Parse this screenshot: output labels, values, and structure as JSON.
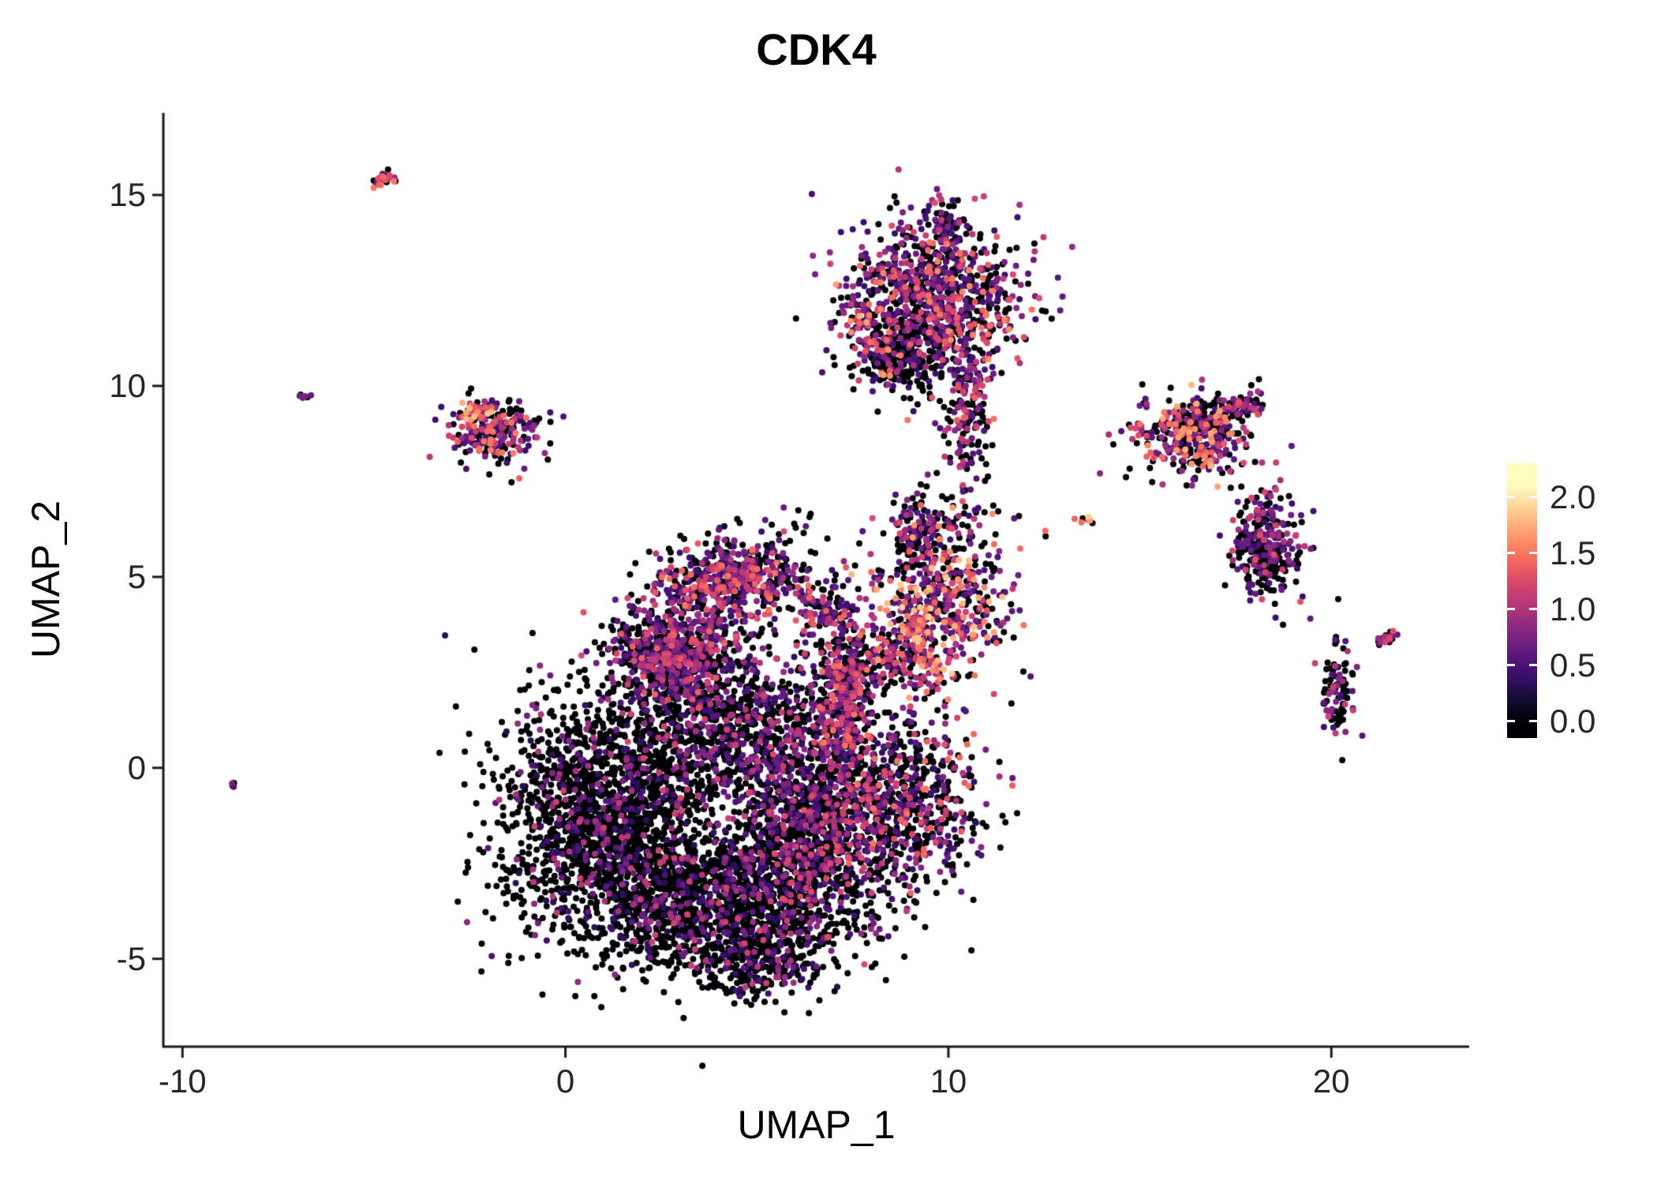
{
  "chart_data": {
    "type": "scatter",
    "title": "CDK4",
    "xlabel": "UMAP_1",
    "ylabel": "UMAP_2",
    "xlim": [
      -10.5,
      23.6
    ],
    "ylim": [
      -7.3,
      17.15
    ],
    "x_ticks": [
      -10,
      0,
      10,
      20
    ],
    "x_tick_labels": [
      "-10",
      "0",
      "10",
      "20"
    ],
    "y_ticks": [
      -5,
      0,
      5,
      10,
      15
    ],
    "y_tick_labels": [
      "-5",
      "0",
      "5",
      "10",
      "15"
    ],
    "grid": false,
    "point_radius_px": 4,
    "seed": 1337,
    "legend": {
      "type": "colorbar",
      "position": "right",
      "tick_values": [
        2.0,
        1.5,
        1.0,
        0.5,
        0.0
      ],
      "tick_labels": [
        "2.0",
        "1.5",
        "1.0",
        "0.5",
        "0.0"
      ],
      "value_range": [
        0,
        2.1
      ],
      "bar_range": [
        -0.15,
        2.3
      ],
      "colormap": "magma",
      "colormap_stops": [
        "#000004",
        "#140E36",
        "#3B0F70",
        "#641A80",
        "#8C2981",
        "#B73779",
        "#DE4968",
        "#F7705C",
        "#FE9F6D",
        "#FECF92",
        "#FCFDBF"
      ]
    },
    "clusters": [
      {
        "name": "main-left",
        "cx": 1.0,
        "cy": -1.3,
        "sx": 1.35,
        "sy": 1.5,
        "rot": 0,
        "n": 1700,
        "p0": 0.8,
        "vlo": 0.3,
        "vhi": 1.2
      },
      {
        "name": "main-bottom",
        "cx": 3.9,
        "cy": -3.6,
        "sx": 1.7,
        "sy": 1.0,
        "rot": 0,
        "n": 1400,
        "p0": 0.8,
        "vlo": 0.3,
        "vhi": 1.2
      },
      {
        "name": "main-bottom-tip",
        "cx": 5.0,
        "cy": -5.1,
        "sx": 0.7,
        "sy": 0.5,
        "rot": 0,
        "n": 200,
        "p0": 0.72,
        "vlo": 0.3,
        "vhi": 1.2
      },
      {
        "name": "main-right",
        "cx": 6.3,
        "cy": -1.8,
        "sx": 1.0,
        "sy": 1.3,
        "rot": 0,
        "n": 1100,
        "p0": 0.62,
        "vlo": 0.35,
        "vhi": 1.3
      },
      {
        "name": "main-mid",
        "cx": 4.4,
        "cy": 1.0,
        "sx": 1.5,
        "sy": 1.0,
        "rot": 0,
        "n": 1000,
        "p0": 0.68,
        "vlo": 0.35,
        "vhi": 1.2
      },
      {
        "name": "upper-left-dense",
        "cx": 2.75,
        "cy": 3.0,
        "sx": 0.8,
        "sy": 0.65,
        "rot": 0,
        "n": 700,
        "p0": 0.45,
        "vlo": 0.4,
        "vhi": 1.4
      },
      {
        "name": "head",
        "cx": 4.3,
        "cy": 4.9,
        "sx": 1.0,
        "sy": 0.5,
        "rot": 0,
        "n": 550,
        "p0": 0.42,
        "vlo": 0.4,
        "vhi": 1.5
      },
      {
        "name": "head-right-clump",
        "cx": 6.6,
        "cy": 4.2,
        "sx": 0.3,
        "sy": 0.3,
        "rot": 0,
        "n": 80,
        "p0": 0.4,
        "vlo": 0.4,
        "vhi": 1.4
      },
      {
        "name": "mid-streak",
        "cx": 7.3,
        "cy": 2.0,
        "sx": 0.38,
        "sy": 1.3,
        "rot": 0,
        "n": 420,
        "p0": 0.35,
        "vlo": 0.45,
        "vhi": 1.5
      },
      {
        "name": "right-lobe",
        "cx": 8.8,
        "cy": -0.9,
        "sx": 1.05,
        "sy": 1.15,
        "rot": 0,
        "n": 700,
        "p0": 0.55,
        "vlo": 0.35,
        "vhi": 1.5
      },
      {
        "name": "mid-right",
        "cx": 9.9,
        "cy": 4.2,
        "sx": 0.85,
        "sy": 1.0,
        "rot": 0,
        "n": 480,
        "p0": 0.38,
        "vlo": 0.5,
        "vhi": 1.9
      },
      {
        "name": "mid-right-orange-streak",
        "cx": 9.3,
        "cy": 3.1,
        "sx": 0.2,
        "sy": 0.7,
        "rot": 0.25,
        "n": 90,
        "p0": 0.2,
        "vlo": 0.9,
        "vhi": 2.0
      },
      {
        "name": "mid-right-neck",
        "cx": 9.2,
        "cy": 6.1,
        "sx": 0.35,
        "sy": 0.5,
        "rot": 0,
        "n": 120,
        "p0": 0.6,
        "vlo": 0.4,
        "vhi": 1.4
      },
      {
        "name": "bridge",
        "cx": 8.3,
        "cy": 2.9,
        "sx": 0.5,
        "sy": 0.5,
        "rot": 0,
        "n": 140,
        "p0": 0.45,
        "vlo": 0.4,
        "vhi": 1.5
      },
      {
        "name": "top-main",
        "cx": 9.6,
        "cy": 12.2,
        "sx": 1.15,
        "sy": 1.0,
        "rot": 0,
        "n": 950,
        "p0": 0.42,
        "vlo": 0.4,
        "vhi": 1.6
      },
      {
        "name": "top-black-notch",
        "cx": 8.8,
        "cy": 10.8,
        "sx": 0.5,
        "sy": 0.45,
        "rot": 0,
        "n": 200,
        "p0": 0.82,
        "vlo": 0.3,
        "vhi": 1.0
      },
      {
        "name": "top-tail",
        "cx": 10.45,
        "cy": 9.3,
        "sx": 0.3,
        "sy": 0.9,
        "rot": 0,
        "n": 160,
        "p0": 0.45,
        "vlo": 0.4,
        "vhi": 1.4
      },
      {
        "name": "top-spur",
        "cx": 9.9,
        "cy": 14.2,
        "sx": 0.2,
        "sy": 0.35,
        "rot": 0,
        "n": 60,
        "p0": 0.5,
        "vlo": 0.4,
        "vhi": 1.2
      },
      {
        "name": "top-left-edge",
        "cx": 7.9,
        "cy": 11.3,
        "sx": 0.22,
        "sy": 0.7,
        "rot": 0.45,
        "n": 90,
        "p0": 0.35,
        "vlo": 0.5,
        "vhi": 1.8
      },
      {
        "name": "left-island",
        "cx": -1.8,
        "cy": 8.8,
        "sx": 0.55,
        "sy": 0.42,
        "rot": 0,
        "n": 230,
        "p0": 0.45,
        "vlo": 0.4,
        "vhi": 1.6
      },
      {
        "name": "left-island-orange-tip",
        "cx": -2.3,
        "cy": 9.35,
        "sx": 0.22,
        "sy": 0.12,
        "rot": 0.3,
        "n": 45,
        "p0": 0.22,
        "vlo": 0.8,
        "vhi": 1.9
      },
      {
        "name": "tiny-top-left",
        "cx": -4.75,
        "cy": 15.45,
        "sx": 0.16,
        "sy": 0.1,
        "rot": 0.45,
        "n": 28,
        "p0": 0.3,
        "vlo": 0.5,
        "vhi": 1.6
      },
      {
        "name": "left-dot",
        "cx": -6.8,
        "cy": 9.7,
        "sx": 0.08,
        "sy": 0.06,
        "rot": 0,
        "n": 8,
        "p0": 0.3,
        "vlo": 0.5,
        "vhi": 1.3
      },
      {
        "name": "far-left-dot",
        "cx": -8.65,
        "cy": -0.45,
        "sx": 0.05,
        "sy": 0.05,
        "rot": 0,
        "n": 4,
        "p0": 0.4,
        "vlo": 0.5,
        "vhi": 1.0
      },
      {
        "name": "right-upper-island",
        "cx": 16.4,
        "cy": 8.7,
        "sx": 0.75,
        "sy": 0.55,
        "rot": 0,
        "n": 380,
        "p0": 0.4,
        "vlo": 0.45,
        "vhi": 1.8
      },
      {
        "name": "right-upper-spur",
        "cx": 17.6,
        "cy": 9.45,
        "sx": 0.35,
        "sy": 0.18,
        "rot": 0.25,
        "n": 70,
        "p0": 0.4,
        "vlo": 0.5,
        "vhi": 1.5
      },
      {
        "name": "right-mid-island",
        "cx": 18.3,
        "cy": 5.8,
        "sx": 0.45,
        "sy": 0.72,
        "rot": 0,
        "n": 300,
        "p0": 0.5,
        "vlo": 0.4,
        "vhi": 1.3
      },
      {
        "name": "right-low-island",
        "cx": 20.2,
        "cy": 2.1,
        "sx": 0.22,
        "sy": 0.68,
        "rot": 0,
        "n": 90,
        "p0": 0.55,
        "vlo": 0.4,
        "vhi": 1.2
      },
      {
        "name": "right-low-streak",
        "cx": 21.45,
        "cy": 3.4,
        "sx": 0.18,
        "sy": 0.07,
        "rot": 0.45,
        "n": 26,
        "p0": 0.35,
        "vlo": 0.6,
        "vhi": 1.3
      },
      {
        "name": "gap-sparse",
        "cx": 10.2,
        "cy": 6.6,
        "sx": 1.3,
        "sy": 0.5,
        "rot": 0,
        "n": 50,
        "p0": 0.5,
        "vlo": 0.4,
        "vhi": 1.5
      },
      {
        "name": "gap-sparse-2",
        "cx": 5.5,
        "cy": 6.2,
        "sx": 0.8,
        "sy": 0.4,
        "rot": 0,
        "n": 25,
        "p0": 0.5,
        "vlo": 0.4,
        "vhi": 1.3
      },
      {
        "name": "orange-dash",
        "cx": 13.6,
        "cy": 6.55,
        "sx": 0.14,
        "sy": 0.07,
        "rot": 0.2,
        "n": 7,
        "p0": 0.15,
        "vlo": 1.0,
        "vhi": 1.9
      }
    ]
  }
}
